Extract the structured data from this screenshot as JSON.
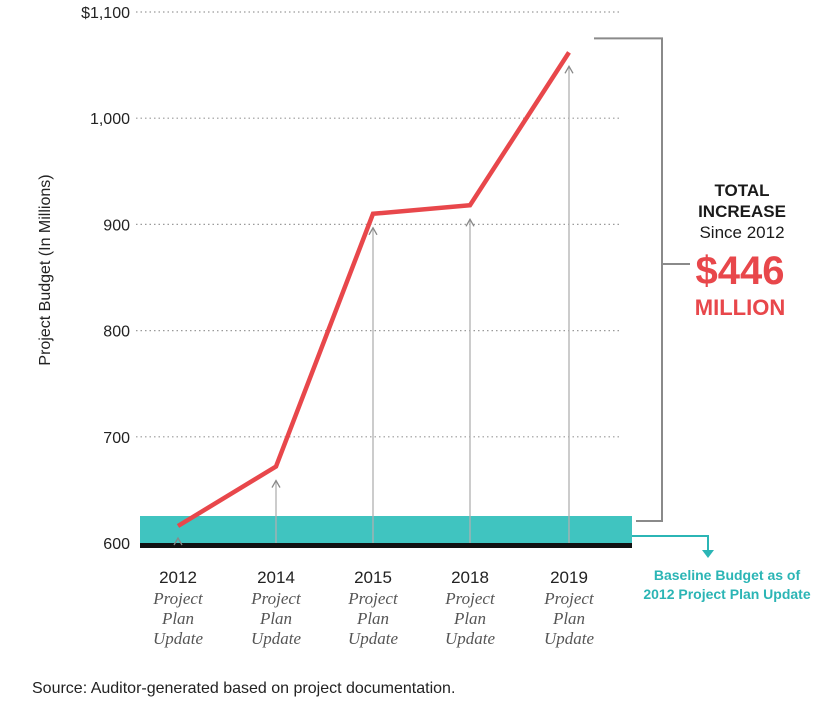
{
  "chart_data": {
    "type": "line",
    "ylabel": "Project Budget  (In Millions)",
    "ylim": [
      600,
      1100
    ],
    "yticks": [
      600,
      700,
      800,
      900,
      1000,
      1100
    ],
    "ytick_labels": [
      "600",
      "700",
      "800",
      "900",
      "1,000",
      "$1,100"
    ],
    "grid": "dotted horizontal",
    "categories": [
      {
        "year": "2012",
        "lines": [
          "Project",
          "Plan",
          "Update"
        ]
      },
      {
        "year": "2014",
        "lines": [
          "Project",
          "Plan",
          "Update"
        ]
      },
      {
        "year": "2015",
        "lines": [
          "Project",
          "Plan",
          "Update"
        ]
      },
      {
        "year": "2018",
        "lines": [
          "Project",
          "Plan",
          "Update"
        ]
      },
      {
        "year": "2019",
        "lines": [
          "Project",
          "Plan",
          "Update"
        ]
      }
    ],
    "values": [
      616,
      672,
      910,
      918,
      1062
    ],
    "baseline_value": 616,
    "colors": {
      "line": "#e8474b",
      "baseline": "#40c4c0",
      "axis": "#111111",
      "arrow": "#b0b0b0",
      "bracket": "#8a8a8a",
      "callout_teal": "#2bb5b5"
    },
    "annotation": {
      "line1": "TOTAL",
      "line2": "INCREASE",
      "line3": "Since 2012",
      "amount": "$446",
      "unit": "MILLION"
    },
    "baseline_label": {
      "line1": "Baseline Budget as of",
      "line2": "2012 Project Plan Update"
    }
  },
  "source": "Source:  Auditor-generated based on project documentation."
}
